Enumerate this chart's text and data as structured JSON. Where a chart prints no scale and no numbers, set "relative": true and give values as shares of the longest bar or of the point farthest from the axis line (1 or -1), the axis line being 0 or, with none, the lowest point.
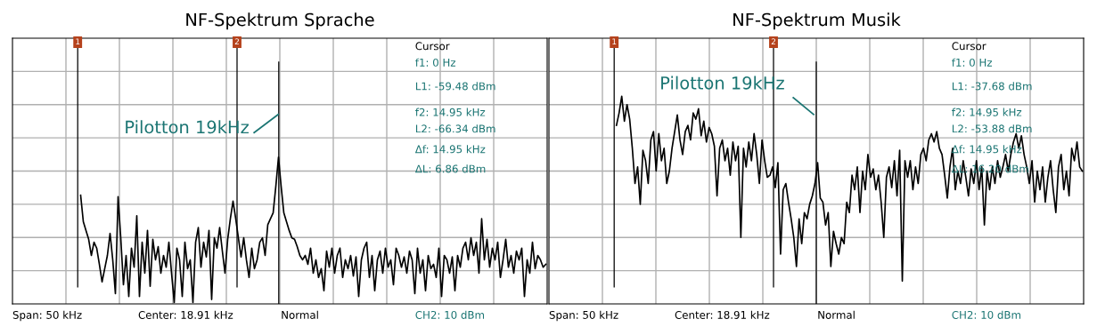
{
  "chart_data": [
    {
      "type": "line",
      "title": "NF-Spektrum Sprache",
      "relative": true,
      "grid": true,
      "categories": [
        null,
        null,
        null,
        null,
        null,
        null,
        null,
        null,
        null,
        null,
        null,
        null,
        null,
        null,
        null,
        null,
        null,
        null,
        null,
        null,
        null,
        null,
        null,
        null,
        null,
        null,
        null,
        null,
        null,
        null,
        null,
        null,
        null,
        null,
        null,
        null,
        null,
        null,
        null,
        null,
        null,
        null,
        null,
        null,
        null,
        null,
        null,
        null,
        null,
        null,
        null,
        null,
        null,
        null,
        null,
        null,
        null,
        null,
        null,
        null,
        null,
        null,
        null,
        null,
        null,
        null,
        null,
        null,
        null,
        null,
        null,
        null,
        null,
        null,
        null,
        null,
        null,
        null,
        null,
        null,
        null,
        null,
        null,
        null,
        null,
        null,
        null,
        null,
        null,
        null,
        null,
        null,
        null,
        null,
        null,
        null,
        null,
        null,
        null,
        null,
        null,
        null,
        null,
        null,
        null,
        null,
        null,
        null,
        null,
        null,
        null,
        null,
        null,
        null,
        null,
        null,
        null,
        null,
        null,
        null,
        null,
        null,
        null,
        null,
        null,
        null,
        null,
        null,
        null,
        null,
        null,
        null,
        null,
        null,
        null,
        null,
        null,
        null,
        null,
        null,
        null,
        null,
        null,
        null,
        null,
        null,
        null,
        null,
        null,
        null,
        null,
        null,
        null,
        null,
        null,
        null,
        null,
        null,
        null,
        null,
        null,
        null,
        null,
        null,
        null,
        null,
        null,
        null,
        null,
        null,
        null,
        null,
        null,
        null,
        null,
        null,
        null,
        null,
        null,
        null,
        null,
        null,
        null,
        null,
        null,
        null,
        null,
        null,
        null,
        null,
        null,
        null,
        null,
        null,
        null,
        null,
        null,
        null,
        null,
        null
      ],
      "series": [
        {
          "color": "#000000",
          "values": [
            null,
            null,
            null,
            null,
            null,
            null,
            null,
            null,
            null,
            null,
            null,
            null,
            null,
            null,
            null,
            null,
            null,
            null,
            null,
            null,
            null,
            null,
            null,
            null,
            null,
            0.74,
            0.56,
            0.5,
            0.44,
            0.33,
            0.42,
            0.38,
            0.27,
            0.15,
            0.24,
            0.33,
            0.48,
            0.3,
            0.07,
            0.73,
            0.45,
            0.13,
            0.33,
            0.05,
            0.38,
            0.25,
            0.6,
            0.05,
            0.42,
            0.21,
            0.5,
            0.12,
            0.44,
            0.3,
            0.39,
            0.21,
            0.33,
            0.25,
            0.42,
            0.21,
            0.01,
            0.38,
            0.3,
            0.05,
            0.42,
            0.24,
            0.3,
            0.01,
            0.42,
            0.52,
            0.25,
            0.42,
            0.32,
            0.5,
            0.03,
            0.45,
            0.38,
            0.52,
            0.36,
            0.21,
            0.44,
            0.58,
            0.7,
            0.58,
            0.45,
            0.32,
            0.45,
            0.3,
            0.18,
            0.38,
            0.24,
            0.3,
            0.42,
            0.45,
            0.33,
            0.54,
            0.58,
            0.62,
            0.8,
            1.0,
            0.8,
            0.62,
            0.56,
            0.5,
            0.45,
            0.44,
            0.39,
            0.33,
            0.3,
            0.33,
            0.27,
            0.38,
            0.21,
            0.3,
            0.18,
            0.24,
            0.09,
            0.36,
            0.25,
            0.38,
            0.21,
            0.33,
            0.38,
            0.18,
            0.3,
            0.24,
            0.33,
            0.19,
            0.32,
            0.05,
            0.3,
            0.38,
            0.42,
            0.18,
            0.33,
            0.09,
            0.3,
            0.36,
            0.21,
            0.38,
            0.25,
            0.3,
            0.13,
            0.38,
            0.33,
            0.25,
            0.32,
            0.21,
            0.36,
            0.3,
            0.07,
            0.38,
            0.21,
            0.3,
            0.09,
            0.33,
            0.24,
            0.27,
            0.18,
            0.38,
            0.05,
            0.33,
            0.3,
            0.21,
            0.32,
            0.09,
            0.33,
            0.25,
            0.38,
            0.42,
            0.3,
            0.45,
            0.33,
            0.42,
            0.21,
            0.58,
            0.3,
            0.44,
            0.25,
            0.38,
            0.3,
            0.42,
            0.18,
            0.3,
            0.44,
            0.25,
            0.33,
            0.21,
            0.36,
            0.3,
            0.38,
            0.05,
            0.3,
            0.21,
            0.42,
            0.24,
            0.33,
            0.3,
            0.25,
            0.27
          ]
        }
      ],
      "annotations": [
        "1",
        "2",
        "Pilotton 19kHz",
        "Cursor",
        "f1: 0 Hz",
        "L1: -59.48 dBm",
        "f2: 14.95 kHz",
        "L2: -66.34 dBm",
        "Δf: 14.95 kHz",
        "ΔL: 6.86 dBm",
        "Span: 50 kHz",
        "Center: 18.91 kHz",
        "Normal",
        "CH2: 10 dBm"
      ]
    },
    {
      "type": "line",
      "title": "NF-Spektrum Musik",
      "relative": true,
      "grid": true,
      "categories": [
        null,
        null,
        null,
        null,
        null,
        null,
        null,
        null,
        null,
        null,
        null,
        null,
        null,
        null,
        null,
        null,
        null,
        null,
        null,
        null,
        null,
        null,
        null,
        null,
        null,
        null,
        null,
        null,
        null,
        null,
        null,
        null,
        null,
        null,
        null,
        null,
        null,
        null,
        null,
        null,
        null,
        null,
        null,
        null,
        null,
        null,
        null,
        null,
        null,
        null,
        null,
        null,
        null,
        null,
        null,
        null,
        null,
        null,
        null,
        null,
        null,
        null,
        null,
        null,
        null,
        null,
        null,
        null,
        null,
        null,
        null,
        null,
        null,
        null,
        null,
        null,
        null,
        null,
        null,
        null,
        null,
        null,
        null,
        null,
        null,
        null,
        null,
        null,
        null,
        null,
        null,
        null,
        null,
        null,
        null,
        null,
        null,
        null,
        null,
        null,
        null,
        null,
        null,
        null,
        null,
        null,
        null,
        null,
        null,
        null,
        null,
        null,
        null,
        null,
        null,
        null,
        null,
        null,
        null,
        null,
        null,
        null,
        null,
        null,
        null,
        null,
        null,
        null,
        null,
        null,
        null,
        null,
        null,
        null,
        null,
        null,
        null,
        null,
        null,
        null,
        null,
        null,
        null,
        null,
        null,
        null,
        null,
        null,
        null,
        null,
        null,
        null,
        null,
        null,
        null,
        null,
        null,
        null,
        null,
        null,
        null,
        null,
        null,
        null,
        null,
        null,
        null,
        null,
        null,
        null,
        null,
        null,
        null,
        null,
        null,
        null,
        null,
        null,
        null,
        null,
        null,
        null,
        null,
        null,
        null,
        null,
        null,
        null,
        null,
        null,
        null,
        null,
        null,
        null,
        null,
        null,
        null,
        null,
        null,
        null,
        null,
        null
      ],
      "series": [
        {
          "color": "#000000",
          "values": [
            null,
            null,
            null,
            null,
            null,
            null,
            null,
            null,
            null,
            null,
            null,
            null,
            null,
            null,
            null,
            null,
            null,
            null,
            null,
            null,
            null,
            null,
            null,
            null,
            null,
            0.86,
            0.92,
            1.0,
            0.88,
            0.96,
            0.89,
            0.75,
            0.58,
            0.66,
            0.48,
            0.74,
            0.69,
            0.58,
            0.79,
            0.83,
            0.64,
            0.82,
            0.69,
            0.75,
            0.58,
            0.64,
            0.75,
            0.83,
            0.91,
            0.79,
            0.72,
            0.83,
            0.86,
            0.79,
            0.92,
            0.89,
            0.94,
            0.81,
            0.88,
            0.78,
            0.85,
            0.82,
            0.76,
            0.52,
            0.75,
            0.79,
            0.69,
            0.75,
            0.62,
            0.78,
            0.69,
            0.76,
            0.32,
            0.75,
            0.66,
            0.78,
            0.69,
            0.82,
            0.72,
            0.58,
            0.79,
            0.69,
            0.61,
            0.62,
            0.66,
            0.56,
            0.68,
            0.24,
            0.55,
            0.58,
            0.49,
            0.41,
            0.32,
            0.18,
            0.41,
            0.29,
            0.44,
            0.41,
            0.48,
            0.52,
            0.58,
            0.68,
            0.51,
            0.49,
            0.38,
            0.44,
            0.18,
            0.35,
            0.29,
            0.24,
            0.32,
            0.29,
            0.49,
            0.44,
            0.62,
            0.55,
            0.66,
            0.44,
            0.64,
            0.55,
            0.72,
            0.61,
            0.65,
            0.55,
            0.62,
            0.49,
            0.32,
            0.61,
            0.66,
            0.56,
            0.69,
            0.52,
            0.74,
            0.11,
            0.69,
            0.61,
            0.69,
            0.55,
            0.66,
            0.58,
            0.72,
            0.75,
            0.69,
            0.79,
            0.82,
            0.78,
            0.83,
            0.75,
            0.72,
            0.62,
            0.51,
            0.66,
            0.75,
            0.55,
            0.64,
            0.58,
            0.69,
            0.61,
            0.52,
            0.65,
            0.58,
            0.69,
            0.55,
            0.66,
            0.38,
            0.64,
            0.55,
            0.66,
            0.58,
            0.69,
            0.61,
            0.66,
            0.72,
            0.64,
            0.72,
            0.78,
            0.82,
            0.75,
            0.81,
            0.72,
            0.66,
            0.58,
            0.69,
            0.49,
            0.64,
            0.55,
            0.66,
            0.49,
            0.61,
            0.69,
            0.55,
            0.44,
            0.66,
            0.72,
            0.55,
            0.64,
            0.52,
            0.75,
            0.69,
            0.78,
            0.66,
            0.64
          ]
        }
      ],
      "annotations": [
        "1",
        "2",
        "Pilotton 19kHz",
        "Cursor",
        "f1: 0 Hz",
        "L1: -37.68 dBm",
        "f2: 14.95 kHz",
        "L2: -53.88 dBm",
        "Δf: 14.95 kHz",
        "ΔL: 16.20 dBm",
        "Span: 50 kHz",
        "Center: 18.91 kHz",
        "Normal",
        "CH2: 10 dBm"
      ]
    }
  ]
}
